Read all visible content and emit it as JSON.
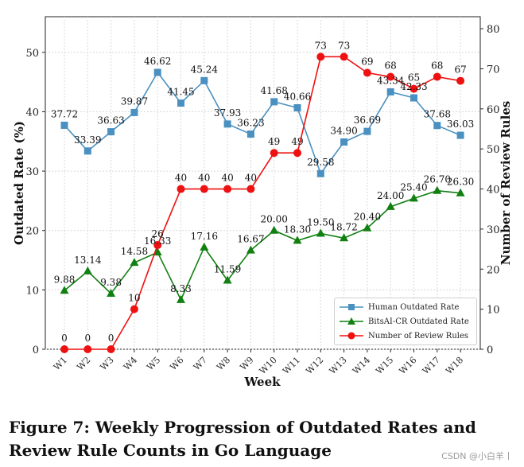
{
  "chart_data": {
    "type": "line",
    "categories": [
      "W1",
      "W2",
      "W3",
      "W4",
      "W5",
      "W6",
      "W7",
      "W8",
      "W9",
      "W10",
      "W11",
      "W12",
      "W13",
      "W14",
      "W15",
      "W16",
      "W17",
      "W18"
    ],
    "xlabel": "Week",
    "ylabel": "Outdated Rate (%)",
    "ylabel_right": "Number of Review Rules",
    "ylim": [
      0,
      56
    ],
    "ylim_right": [
      0,
      83
    ],
    "yticks": [
      0,
      10,
      20,
      30,
      40,
      50
    ],
    "yticks_right": [
      0,
      10,
      20,
      30,
      40,
      50,
      60,
      70,
      80
    ],
    "grid": true,
    "legend_position": "lower-right",
    "series": [
      {
        "name": "Human Outdated Rate",
        "axis": "left",
        "color": "#4a90c0",
        "marker": "square",
        "values": [
          37.72,
          33.39,
          36.63,
          39.87,
          46.62,
          41.45,
          45.24,
          37.93,
          36.23,
          41.68,
          40.66,
          29.58,
          34.9,
          36.69,
          43.34,
          42.33,
          37.68,
          36.03
        ],
        "labels": [
          "37.72",
          "33.39",
          "36.63",
          "39.87",
          "46.62",
          "41.45",
          "45.24",
          "37.93",
          "36.23",
          "41.68",
          "40.66",
          "29.58",
          "34.90",
          "36.69",
          "43.34",
          "42.33",
          "37.68",
          "36.03"
        ]
      },
      {
        "name": "BitsAI-CR Outdated Rate",
        "axis": "left",
        "color": "#118011",
        "marker": "triangle",
        "values": [
          9.88,
          13.14,
          9.38,
          14.58,
          16.33,
          8.33,
          17.16,
          11.59,
          16.67,
          20.0,
          18.3,
          19.5,
          18.72,
          20.4,
          24.0,
          25.4,
          26.7,
          26.3
        ],
        "labels": [
          "9.88",
          "13.14",
          "9.38",
          "14.58",
          "16.33",
          "8.33",
          "17.16",
          "11.59",
          "16.67",
          "20.00",
          "18.30",
          "19.50",
          "18.72",
          "20.40",
          "24.00",
          "25.40",
          "26.70",
          "26.30"
        ]
      },
      {
        "name": "Number of Review Rules",
        "axis": "right",
        "color": "#ee1111",
        "marker": "circle",
        "values": [
          0,
          0,
          0,
          10,
          26,
          40,
          40,
          40,
          40,
          49,
          49,
          73,
          73,
          69,
          68,
          65,
          68,
          67
        ],
        "labels": [
          "0",
          "0",
          "0",
          "10",
          "26",
          "40",
          "40",
          "40",
          "40",
          "49",
          "49",
          "73",
          "73",
          "69",
          "68",
          "65",
          "68",
          "67"
        ]
      }
    ]
  },
  "caption": "Figure 7: Weekly Progression of Outdated Rates and Review Rule Counts in Go Language",
  "watermark": "CSDN @小白羊丨"
}
